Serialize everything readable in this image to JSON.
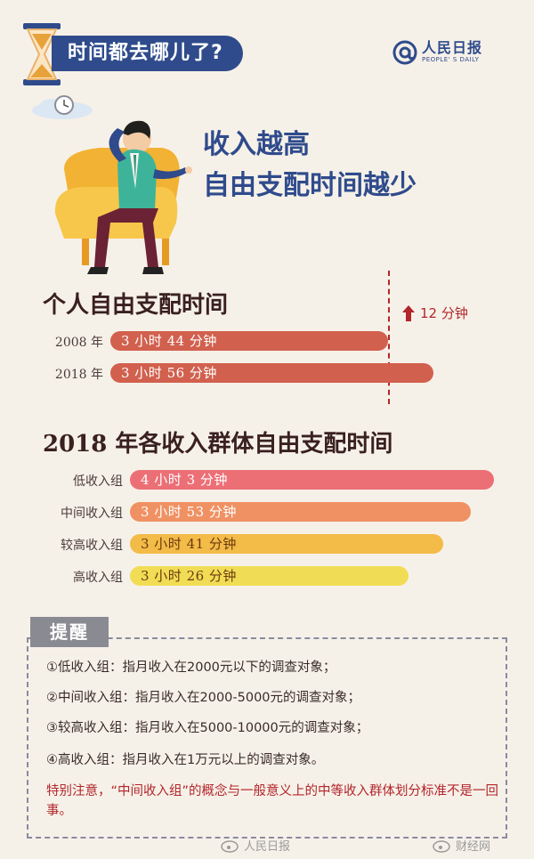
{
  "header": {
    "title": "时间都去哪儿了?",
    "logo_cn": "人民日报",
    "logo_en": "PEOPLE' S DAILY"
  },
  "headline": {
    "line1": "收入越高",
    "line2": "自由支配时间越少"
  },
  "chart_data": [
    {
      "type": "bar",
      "title": "个人自由支配时间",
      "unit": "minutes",
      "categories": [
        "2008 年",
        "2018 年"
      ],
      "values": [
        224,
        236
      ],
      "value_labels": [
        "3 小时 44 分钟",
        "3 小时 56 分钟"
      ],
      "annotation": "12 分钟",
      "colors": [
        "#d2604e",
        "#d2604e"
      ]
    },
    {
      "type": "bar",
      "title": "2018 年各收入群体自由支配时间",
      "unit": "minutes",
      "categories": [
        "低收入组",
        "中间收入组",
        "较高收入组",
        "高收入组"
      ],
      "values": [
        243,
        233,
        221,
        206
      ],
      "value_labels": [
        "4 小时 3 分钟",
        "3 小时 53 分钟",
        "3 小时 41 分钟",
        "3 小时 26 分钟"
      ],
      "colors": [
        "#ec6f76",
        "#f09163",
        "#f3bb47",
        "#f1dd55"
      ]
    }
  ],
  "reminder": {
    "tab": "提醒",
    "notes": [
      "①低收入组：指月收入在2000元以下的调查对象；",
      "②中间收入组：指月收入在2000-5000元的调查对象；",
      "③较高收入组：指月收入在5000-10000元的调查对象；",
      "④高收入组：指月收入在1万元以上的调查对象。"
    ],
    "special": "特别注意，“中间收入组”的概念与一般意义上的中等收入群体划分标准不是一回事。"
  },
  "watermarks": [
    "人民日报",
    "财经网"
  ]
}
